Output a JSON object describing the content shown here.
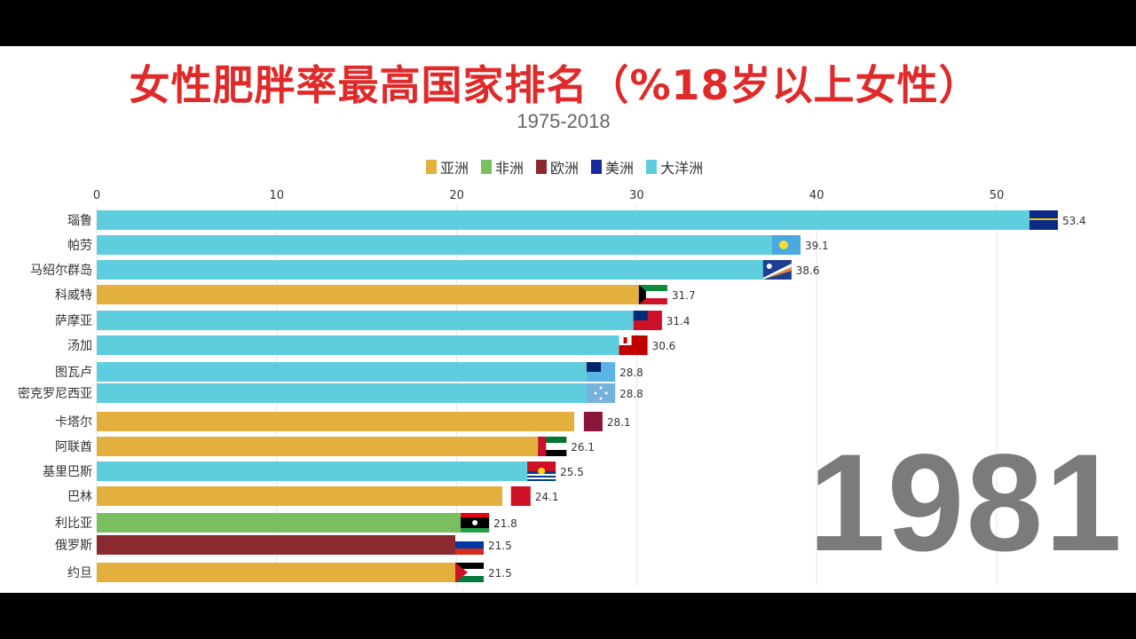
{
  "chart_data": {
    "type": "bar",
    "orientation": "horizontal",
    "title": "女性肥胖率最高国家排名（%18岁以上女性）",
    "subtitle": "1975-2018",
    "year_label": "1981",
    "xlim": [
      0,
      55
    ],
    "x_ticks": [
      "0",
      "10",
      "20",
      "30",
      "40",
      "50"
    ],
    "grid": true,
    "legend_position": "top",
    "legend": [
      {
        "name": "亚洲",
        "color": "#e3b03e"
      },
      {
        "name": "非洲",
        "color": "#7abf5f"
      },
      {
        "name": "欧洲",
        "color": "#8b2a2e"
      },
      {
        "name": "美洲",
        "color": "#1a2a9a"
      },
      {
        "name": "大洋洲",
        "color": "#5ecede"
      }
    ],
    "bars": [
      {
        "label": "瑙鲁",
        "value": 53.4,
        "region": "大洋洲",
        "icon": "nauru-flag-icon"
      },
      {
        "label": "帕劳",
        "value": 39.1,
        "region": "大洋洲",
        "icon": "palau-flag-icon"
      },
      {
        "label": "马绍尔群岛",
        "value": 38.6,
        "region": "大洋洲",
        "icon": "marshall-islands-flag-icon"
      },
      {
        "label": "科威特",
        "value": 31.7,
        "region": "亚洲",
        "icon": "kuwait-flag-icon"
      },
      {
        "label": "萨摩亚",
        "value": 31.4,
        "region": "大洋洲",
        "icon": "samoa-flag-icon"
      },
      {
        "label": "汤加",
        "value": 30.6,
        "region": "大洋洲",
        "icon": "tonga-flag-icon"
      },
      {
        "label": "图瓦卢",
        "value": 28.8,
        "region": "大洋洲",
        "icon": "tuvalu-flag-icon"
      },
      {
        "label": "密克罗尼西亚",
        "value": 28.8,
        "region": "大洋洲",
        "icon": "micronesia-flag-icon"
      },
      {
        "label": "卡塔尔",
        "value": 28.1,
        "region": "亚洲",
        "icon": "qatar-flag-icon"
      },
      {
        "label": "阿联酋",
        "value": 26.1,
        "region": "亚洲",
        "icon": "uae-flag-icon"
      },
      {
        "label": "基里巴斯",
        "value": 25.5,
        "region": "大洋洲",
        "icon": "kiribati-flag-icon"
      },
      {
        "label": "巴林",
        "value": 24.1,
        "region": "亚洲",
        "icon": "bahrain-flag-icon"
      },
      {
        "label": "利比亚",
        "value": 21.8,
        "region": "非洲",
        "icon": "libya-flag-icon"
      },
      {
        "label": "俄罗斯",
        "value": 21.5,
        "region": "欧洲",
        "icon": "russia-flag-icon"
      },
      {
        "label": "约旦",
        "value": 21.5,
        "region": "亚洲",
        "icon": "jordan-flag-icon"
      }
    ]
  }
}
